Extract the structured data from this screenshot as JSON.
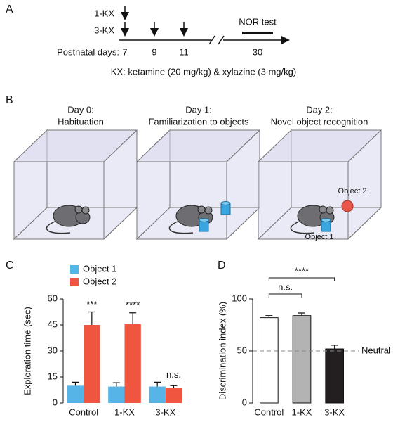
{
  "panel_a": {
    "label": "A",
    "rows": [
      "1-KX",
      "3-KX"
    ],
    "test": "NOR test",
    "axis_label": "Postnatal days:",
    "days": [
      "7",
      "9",
      "11",
      "30"
    ],
    "note": "KX: ketamine (20 mg/kg) & xylazine (3 mg/kg)"
  },
  "panel_b": {
    "label": "B",
    "boxes": [
      {
        "title": "Day 0:",
        "subtitle": "Habituation"
      },
      {
        "title": "Day 1:",
        "subtitle": "Familiarization to objects"
      },
      {
        "title": "Day 2:",
        "subtitle": "Novel object recognition"
      }
    ],
    "objects": [
      "Object 2",
      "Object 1"
    ]
  },
  "chart_data": [
    {
      "type": "bar",
      "panel": "C",
      "y_label": "Exploration time (sec)",
      "categories": [
        "Control",
        "1-KX",
        "3-KX"
      ],
      "series": [
        {
          "name": "Object 1",
          "color": "#56b4e6",
          "values": [
            10,
            9.5,
            9.5
          ],
          "errors": [
            2,
            2.2,
            2.5
          ]
        },
        {
          "name": "Object 2",
          "color": "#f0563f",
          "values": [
            45,
            45.5,
            8.5
          ],
          "errors": [
            7.5,
            6.5,
            1.5
          ]
        }
      ],
      "annotations": [
        "***",
        "****",
        "n.s."
      ],
      "ylim": [
        0,
        60
      ],
      "yticks": [
        0,
        15,
        30,
        45,
        60
      ],
      "legend": "top-left"
    },
    {
      "type": "bar",
      "panel": "D",
      "y_label": "Discrimination index (%)",
      "categories": [
        "Control",
        "1-KX",
        "3-KX"
      ],
      "values": [
        82,
        84,
        52
      ],
      "errors": [
        2,
        2.5,
        3.5
      ],
      "colors": [
        "#ffffff",
        "#b3b3b3",
        "#231f20"
      ],
      "reference": {
        "value": 50,
        "label": "Neutral"
      },
      "comparisons": [
        {
          "label": "n.s.",
          "categories": [
            "Control",
            "1-KX"
          ]
        },
        {
          "label": "****",
          "categories": [
            "Control",
            "3-KX"
          ]
        }
      ],
      "ylim": [
        0,
        100
      ],
      "yticks": [
        0,
        50,
        100
      ]
    }
  ]
}
